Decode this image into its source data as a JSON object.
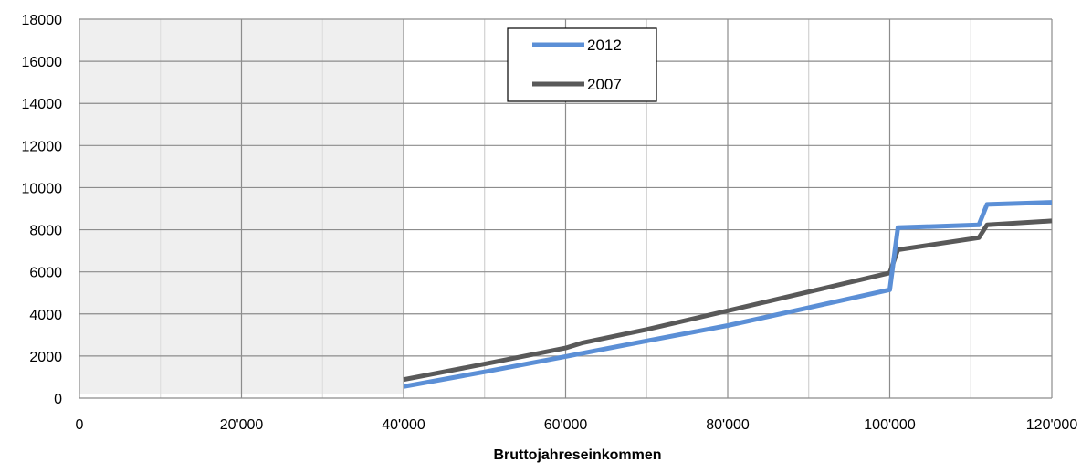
{
  "chart_data": {
    "type": "line",
    "title": "",
    "xlabel": "Bruttojahreseinkommen",
    "ylabel": "",
    "xlim": [
      0,
      120000
    ],
    "ylim": [
      0,
      18000
    ],
    "x_ticks": [
      {
        "value": 0,
        "label": "0"
      },
      {
        "value": 20000,
        "label": "20'000"
      },
      {
        "value": 40000,
        "label": "40'000"
      },
      {
        "value": 60000,
        "label": "60'000"
      },
      {
        "value": 80000,
        "label": "80'000"
      },
      {
        "value": 100000,
        "label": "100'000"
      },
      {
        "value": 120000,
        "label": "120'000"
      }
    ],
    "y_ticks": [
      {
        "value": 0,
        "label": "0"
      },
      {
        "value": 2000,
        "label": "2000"
      },
      {
        "value": 4000,
        "label": "4000"
      },
      {
        "value": 6000,
        "label": "6000"
      },
      {
        "value": 8000,
        "label": "8000"
      },
      {
        "value": 10000,
        "label": "10000"
      },
      {
        "value": 12000,
        "label": "12000"
      },
      {
        "value": 14000,
        "label": "14000"
      },
      {
        "value": 16000,
        "label": "16000"
      },
      {
        "value": 18000,
        "label": "18000"
      }
    ],
    "grid": true,
    "shaded_region": {
      "x_from": 0,
      "x_to": 40000,
      "color": "#efefef"
    },
    "legend_position": "top-center",
    "series": [
      {
        "name": "2012",
        "color": "#5b8fd6",
        "points": [
          [
            40000,
            550
          ],
          [
            50000,
            1250
          ],
          [
            60000,
            1980
          ],
          [
            70000,
            2720
          ],
          [
            80000,
            3450
          ],
          [
            90000,
            4300
          ],
          [
            100000,
            5150
          ],
          [
            101000,
            8100
          ],
          [
            111000,
            8230
          ],
          [
            112000,
            9200
          ],
          [
            120000,
            9300
          ]
        ]
      },
      {
        "name": "2007",
        "color": "#595959",
        "points": [
          [
            40000,
            880
          ],
          [
            50000,
            1620
          ],
          [
            60000,
            2380
          ],
          [
            62000,
            2620
          ],
          [
            70000,
            3260
          ],
          [
            80000,
            4150
          ],
          [
            90000,
            5050
          ],
          [
            100000,
            5950
          ],
          [
            101000,
            7050
          ],
          [
            111000,
            7620
          ],
          [
            112000,
            8230
          ],
          [
            120000,
            8420
          ]
        ]
      }
    ]
  }
}
